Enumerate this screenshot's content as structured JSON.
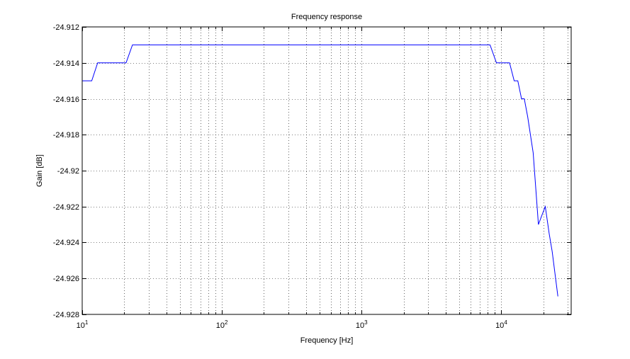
{
  "chart_data": {
    "type": "line",
    "title": "Frequency response",
    "xlabel": "Frequency [Hz]",
    "ylabel": "Gain [dB]",
    "xscale": "log",
    "xlim": [
      10,
      31622.8
    ],
    "ylim": [
      -24.928,
      -24.912
    ],
    "x_ticks": [
      10,
      100,
      1000,
      10000
    ],
    "x_tick_labels": [
      {
        "base": "10",
        "exp": "1"
      },
      {
        "base": "10",
        "exp": "2"
      },
      {
        "base": "10",
        "exp": "3"
      },
      {
        "base": "10",
        "exp": "4"
      }
    ],
    "y_ticks": [
      -24.928,
      -24.926,
      -24.924,
      -24.922,
      -24.92,
      -24.918,
      -24.916,
      -24.914,
      -24.912
    ],
    "y_tick_labels": [
      "-24.928",
      "-24.926",
      "-24.924",
      "-24.922",
      "-24.92",
      "-24.918",
      "-24.916",
      "-24.914",
      "-24.912"
    ],
    "grid": true,
    "series": [
      {
        "color": "#0000ff",
        "x": [
          10,
          11.7,
          12.9,
          20.6,
          22.9,
          8300,
          9230,
          11450,
          12360,
          13120,
          13950,
          14600,
          15440,
          16900,
          18430,
          19480,
          20640,
          22000,
          23120,
          25400
        ],
        "y": [
          -24.915,
          -24.915,
          -24.914,
          -24.914,
          -24.913,
          -24.913,
          -24.914,
          -24.914,
          -24.915,
          -24.915,
          -24.916,
          -24.916,
          -24.917,
          -24.919,
          -24.923,
          -24.9225,
          -24.922,
          -24.9235,
          -24.9245,
          -24.927
        ]
      }
    ]
  }
}
